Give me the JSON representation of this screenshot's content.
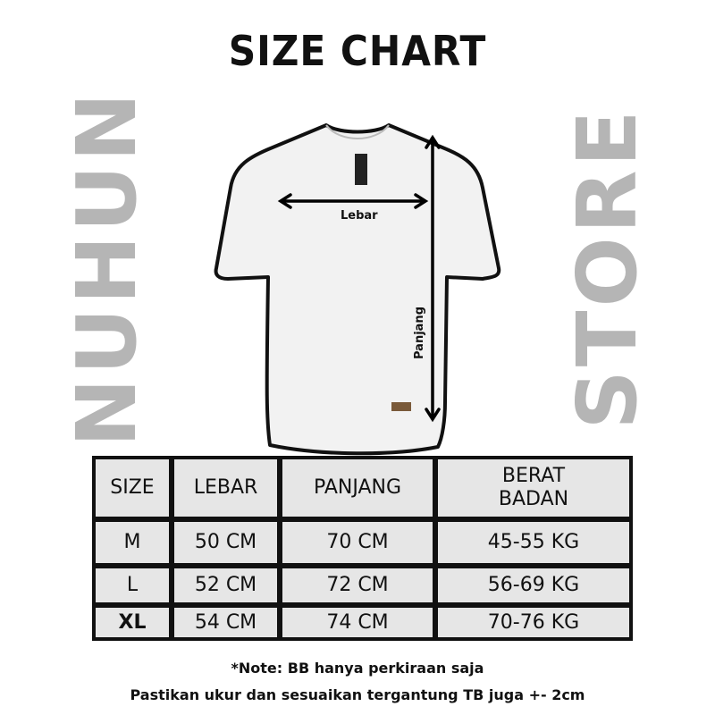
{
  "title": "SIZE CHART",
  "diagram": {
    "width_label": "Lebar",
    "length_label": "Panjang"
  },
  "watermark": {
    "line1": "NUHUN",
    "line2": "STORE"
  },
  "table": {
    "headers": [
      "SIZE",
      "LEBAR",
      "PANJANG",
      "BERAT BADAN"
    ],
    "rows": [
      [
        "M",
        "50 CM",
        "70 CM",
        "45-55 KG"
      ],
      [
        "L",
        "52 CM",
        "72 CM",
        "56-69 KG"
      ],
      [
        "XL",
        "54 CM",
        "74 CM",
        "70-76 KG"
      ]
    ]
  },
  "notes": {
    "line1": "*Note: BB hanya perkiraan saja",
    "line2": "Pastikan ukur dan sesuaikan tergantung TB juga  +- 2cm"
  }
}
